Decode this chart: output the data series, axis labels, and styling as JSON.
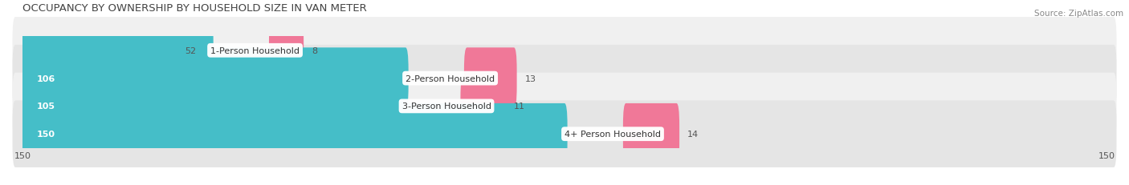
{
  "title": "OCCUPANCY BY OWNERSHIP BY HOUSEHOLD SIZE IN VAN METER",
  "source": "Source: ZipAtlas.com",
  "categories": [
    "1-Person Household",
    "2-Person Household",
    "3-Person Household",
    "4+ Person Household"
  ],
  "owner_values": [
    52,
    106,
    105,
    150
  ],
  "renter_values": [
    8,
    13,
    11,
    14
  ],
  "max_value": 150,
  "owner_color": "#45BEC8",
  "renter_color": "#F07898",
  "row_bg_colors": [
    "#F0F0F0",
    "#E5E5E5",
    "#F0F0F0",
    "#E5E5E5"
  ],
  "title_fontsize": 9.5,
  "label_fontsize": 8.0,
  "tick_fontsize": 8.0,
  "legend_fontsize": 8.5,
  "source_fontsize": 7.5
}
